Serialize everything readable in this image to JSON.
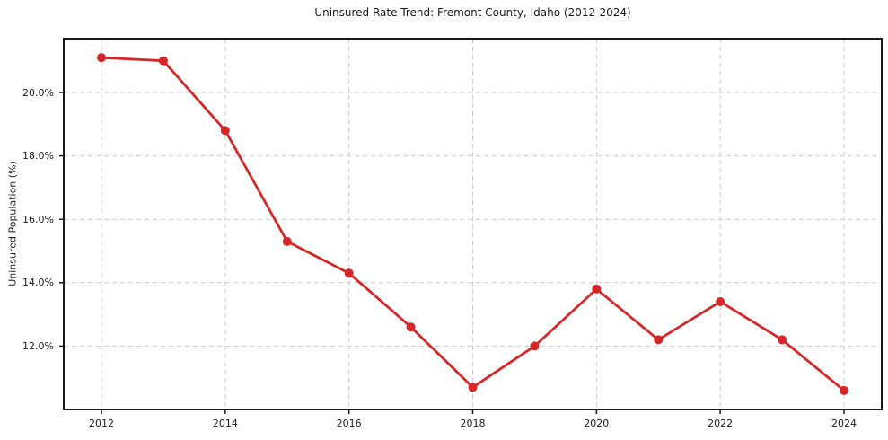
{
  "chart_data": {
    "type": "line",
    "title": "Uninsured Rate Trend: Fremont County, Idaho (2012-2024)",
    "xlabel": "",
    "ylabel": "Uninsured Population (%)",
    "x": [
      2012,
      2013,
      2014,
      2015,
      2016,
      2017,
      2018,
      2019,
      2020,
      2021,
      2022,
      2023,
      2024
    ],
    "series": [
      {
        "name": "Uninsured Population (%)",
        "values": [
          21.1,
          21.0,
          18.8,
          15.3,
          14.3,
          12.6,
          10.7,
          12.0,
          13.8,
          12.2,
          13.4,
          12.2,
          10.6
        ],
        "color": "#d62728",
        "marker": "circle"
      }
    ],
    "unit": "%",
    "xlim": [
      2011.39,
      2024.61
    ],
    "ylim": [
      10.0,
      21.7
    ],
    "x_tick_values": [
      2012,
      2014,
      2016,
      2018,
      2020,
      2022,
      2024
    ],
    "x_tick_labels": [
      "2012",
      "2014",
      "2016",
      "2018",
      "2020",
      "2022",
      "2024"
    ],
    "y_tick_values": [
      20,
      18,
      16,
      14,
      12
    ],
    "y_tick_labels": [
      "20.0%",
      "18.0%",
      "16.0%",
      "14.0%",
      "12.0%"
    ],
    "grid": true,
    "grid_style": "dashed",
    "grid_color": "#cccccc",
    "spine_color": "#1a1a1a",
    "background_color": "#ffffff",
    "legend": false
  }
}
